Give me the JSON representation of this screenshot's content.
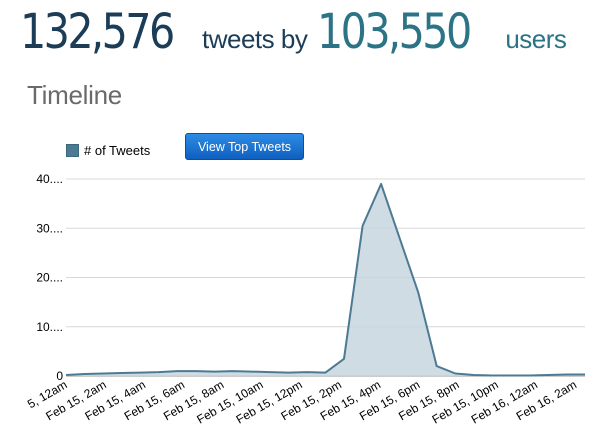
{
  "header": {
    "tweet_count": "132,576",
    "tweets_by_label": "tweets by",
    "user_count": "103,550",
    "users_label": "users"
  },
  "section_title": "Timeline",
  "button": {
    "label": "View Top Tweets"
  },
  "colors": {
    "tweet_count": "#1c3d57",
    "user_count": "#2b7385",
    "series_line": "#4d7a93",
    "series_fill": "#c7d6df",
    "button": "#1a73d0"
  },
  "chart_data": {
    "type": "area",
    "legend": "top-left",
    "grid": true,
    "ylim": [
      0,
      40
    ],
    "y_ticks": [
      "0",
      "10....",
      "20....",
      "30....",
      "40...."
    ],
    "y_tick_values": [
      0,
      10,
      20,
      30,
      40
    ],
    "x_tick_labels": [
      "5, 12am",
      "Feb 15, 2am",
      "Feb 15, 4am",
      "Feb 15, 6am",
      "Feb 15, 8am",
      "Feb 15, 10am",
      "Feb 15, 12pm",
      "Feb 15, 2pm",
      "Feb 15, 4pm",
      "Feb 15, 6pm",
      "Feb 15, 8pm",
      "Feb 15, 10pm",
      "Feb 16, 12am",
      "Feb 16, 2am"
    ],
    "series": [
      {
        "name": "# of Tweets",
        "values": [
          0.2,
          0.4,
          0.5,
          0.6,
          0.7,
          0.8,
          1.0,
          1.0,
          0.9,
          1.0,
          0.9,
          0.8,
          0.7,
          0.8,
          0.7,
          3.5,
          30.5,
          39,
          28,
          17,
          2,
          0.5,
          0.2,
          0.1,
          0.1,
          0.1,
          0.2,
          0.3,
          0.3
        ]
      }
    ]
  }
}
